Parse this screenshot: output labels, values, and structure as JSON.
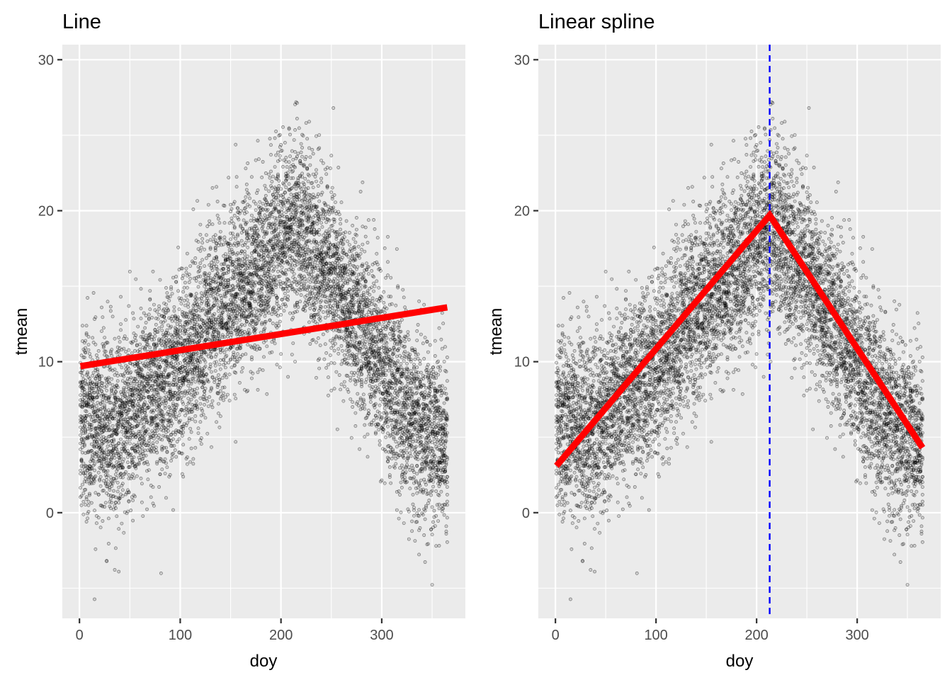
{
  "chart_data": [
    {
      "type": "scatter",
      "title": "Line",
      "xlabel": "doy",
      "ylabel": "tmean",
      "xlim": [
        -17,
        383
      ],
      "ylim": [
        -7,
        31
      ],
      "x_ticks": [
        0,
        100,
        200,
        300
      ],
      "y_ticks": [
        0,
        10,
        20,
        30
      ],
      "grid": true,
      "legend": "none",
      "point_color": "#000000",
      "point_alpha": 0.35,
      "scatter_trend": {
        "doy": [
          1,
          30,
          60,
          90,
          120,
          150,
          180,
          200,
          215,
          240,
          270,
          300,
          330,
          365
        ],
        "tmean_center": [
          6.5,
          5.5,
          7.0,
          9.0,
          11.5,
          14.0,
          16.5,
          18.0,
          19.0,
          17.0,
          13.5,
          10.0,
          6.0,
          4.5
        ],
        "tmean_spread": [
          3.0,
          3.0,
          3.0,
          3.0,
          3.0,
          3.0,
          3.0,
          3.0,
          3.2,
          3.0,
          3.0,
          3.0,
          3.0,
          3.0
        ],
        "approx_n_points": 7300
      },
      "fit": {
        "name": "linear fit",
        "color": "#ff0000",
        "x": [
          1,
          365
        ],
        "y": [
          9.7,
          13.6
        ]
      }
    },
    {
      "type": "scatter",
      "title": "Linear spline",
      "xlabel": "doy",
      "ylabel": "tmean",
      "xlim": [
        -17,
        383
      ],
      "ylim": [
        -7,
        31
      ],
      "x_ticks": [
        0,
        100,
        200,
        300
      ],
      "y_ticks": [
        0,
        10,
        20,
        30
      ],
      "grid": true,
      "legend": "none",
      "point_color": "#000000",
      "point_alpha": 0.35,
      "fit": {
        "name": "linear spline fit",
        "color": "#ff0000",
        "x": [
          1,
          213,
          365
        ],
        "y": [
          3.1,
          19.7,
          4.3
        ]
      },
      "knot": {
        "x": 213,
        "color": "#0000ff",
        "style": "dashed"
      }
    }
  ]
}
